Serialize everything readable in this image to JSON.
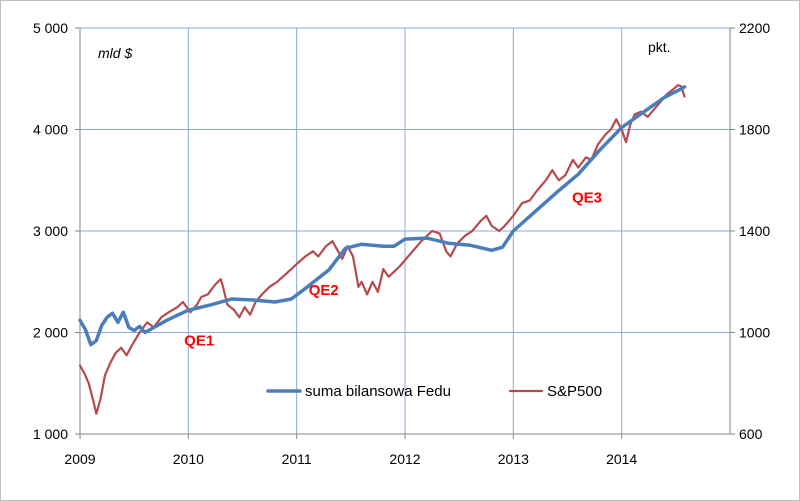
{
  "chart_data": {
    "type": "line",
    "title": "",
    "left_unit_label": "mld $",
    "right_unit_label": "pkt.",
    "x_ticks": [
      "2009",
      "2010",
      "2011",
      "2012",
      "2013",
      "2014"
    ],
    "xlim": [
      2009.0,
      2015.0
    ],
    "y_left": {
      "lim": [
        1000,
        5000
      ],
      "ticks": [
        "1 000",
        "2 000",
        "3 000",
        "4 000",
        "5 000"
      ],
      "tick_values": [
        1000,
        2000,
        3000,
        4000,
        5000
      ]
    },
    "y_right": {
      "lim": [
        600,
        2200
      ],
      "ticks": [
        "600",
        "1000",
        "1400",
        "1800",
        "2200"
      ],
      "tick_values": [
        600,
        1000,
        1400,
        1800,
        2200
      ]
    },
    "grid": true,
    "legend_position": "bottom-center",
    "series": [
      {
        "name": "suma bilansowa Fedu",
        "axis": "left",
        "color": "#4a7ebb",
        "points": [
          [
            2009.0,
            2120
          ],
          [
            2009.05,
            2030
          ],
          [
            2009.1,
            1880
          ],
          [
            2009.15,
            1920
          ],
          [
            2009.2,
            2070
          ],
          [
            2009.25,
            2150
          ],
          [
            2009.3,
            2190
          ],
          [
            2009.35,
            2100
          ],
          [
            2009.4,
            2200
          ],
          [
            2009.45,
            2050
          ],
          [
            2009.5,
            2020
          ],
          [
            2009.55,
            2060
          ],
          [
            2009.6,
            2000
          ],
          [
            2009.7,
            2060
          ],
          [
            2009.8,
            2120
          ],
          [
            2009.9,
            2170
          ],
          [
            2010.0,
            2220
          ],
          [
            2010.2,
            2270
          ],
          [
            2010.4,
            2330
          ],
          [
            2010.6,
            2320
          ],
          [
            2010.8,
            2300
          ],
          [
            2010.95,
            2330
          ],
          [
            2011.1,
            2450
          ],
          [
            2011.3,
            2620
          ],
          [
            2011.45,
            2830
          ],
          [
            2011.6,
            2870
          ],
          [
            2011.8,
            2850
          ],
          [
            2011.9,
            2850
          ],
          [
            2012.0,
            2920
          ],
          [
            2012.2,
            2930
          ],
          [
            2012.4,
            2880
          ],
          [
            2012.6,
            2860
          ],
          [
            2012.8,
            2810
          ],
          [
            2012.9,
            2840
          ],
          [
            2013.0,
            3000
          ],
          [
            2013.2,
            3190
          ],
          [
            2013.4,
            3380
          ],
          [
            2013.6,
            3560
          ],
          [
            2013.8,
            3800
          ],
          [
            2014.0,
            4020
          ],
          [
            2014.2,
            4170
          ],
          [
            2014.4,
            4320
          ],
          [
            2014.55,
            4400
          ],
          [
            2014.58,
            4420
          ]
        ]
      },
      {
        "name": "S&P500",
        "axis": "right",
        "color": "#b64b4e",
        "points": [
          [
            2009.0,
            870
          ],
          [
            2009.04,
            840
          ],
          [
            2009.08,
            800
          ],
          [
            2009.12,
            735
          ],
          [
            2009.15,
            680
          ],
          [
            2009.19,
            740
          ],
          [
            2009.23,
            830
          ],
          [
            2009.28,
            880
          ],
          [
            2009.33,
            920
          ],
          [
            2009.38,
            940
          ],
          [
            2009.43,
            910
          ],
          [
            2009.48,
            950
          ],
          [
            2009.55,
            1000
          ],
          [
            2009.62,
            1040
          ],
          [
            2009.68,
            1020
          ],
          [
            2009.75,
            1060
          ],
          [
            2009.82,
            1080
          ],
          [
            2009.9,
            1100
          ],
          [
            2009.95,
            1120
          ],
          [
            2010.02,
            1080
          ],
          [
            2010.08,
            1110
          ],
          [
            2010.12,
            1140
          ],
          [
            2010.18,
            1150
          ],
          [
            2010.25,
            1190
          ],
          [
            2010.3,
            1210
          ],
          [
            2010.32,
            1180
          ],
          [
            2010.36,
            1110
          ],
          [
            2010.42,
            1090
          ],
          [
            2010.47,
            1060
          ],
          [
            2010.52,
            1100
          ],
          [
            2010.57,
            1070
          ],
          [
            2010.62,
            1120
          ],
          [
            2010.68,
            1150
          ],
          [
            2010.75,
            1180
          ],
          [
            2010.82,
            1200
          ],
          [
            2010.9,
            1230
          ],
          [
            2010.95,
            1250
          ],
          [
            2011.0,
            1270
          ],
          [
            2011.08,
            1300
          ],
          [
            2011.15,
            1320
          ],
          [
            2011.2,
            1300
          ],
          [
            2011.27,
            1340
          ],
          [
            2011.33,
            1360
          ],
          [
            2011.37,
            1330
          ],
          [
            2011.42,
            1290
          ],
          [
            2011.47,
            1340
          ],
          [
            2011.52,
            1300
          ],
          [
            2011.57,
            1180
          ],
          [
            2011.6,
            1200
          ],
          [
            2011.65,
            1150
          ],
          [
            2011.7,
            1200
          ],
          [
            2011.75,
            1160
          ],
          [
            2011.8,
            1250
          ],
          [
            2011.85,
            1220
          ],
          [
            2011.9,
            1240
          ],
          [
            2011.95,
            1260
          ],
          [
            2012.05,
            1310
          ],
          [
            2012.15,
            1360
          ],
          [
            2012.25,
            1400
          ],
          [
            2012.32,
            1390
          ],
          [
            2012.38,
            1320
          ],
          [
            2012.42,
            1300
          ],
          [
            2012.48,
            1350
          ],
          [
            2012.55,
            1380
          ],
          [
            2012.62,
            1400
          ],
          [
            2012.7,
            1440
          ],
          [
            2012.75,
            1460
          ],
          [
            2012.8,
            1420
          ],
          [
            2012.87,
            1400
          ],
          [
            2012.92,
            1420
          ],
          [
            2013.0,
            1460
          ],
          [
            2013.08,
            1510
          ],
          [
            2013.15,
            1520
          ],
          [
            2013.22,
            1560
          ],
          [
            2013.3,
            1600
          ],
          [
            2013.36,
            1640
          ],
          [
            2013.42,
            1600
          ],
          [
            2013.48,
            1620
          ],
          [
            2013.55,
            1680
          ],
          [
            2013.6,
            1650
          ],
          [
            2013.67,
            1690
          ],
          [
            2013.72,
            1680
          ],
          [
            2013.78,
            1740
          ],
          [
            2013.85,
            1780
          ],
          [
            2013.9,
            1800
          ],
          [
            2013.95,
            1840
          ],
          [
            2014.0,
            1800
          ],
          [
            2014.04,
            1750
          ],
          [
            2014.08,
            1820
          ],
          [
            2014.12,
            1860
          ],
          [
            2014.18,
            1870
          ],
          [
            2014.24,
            1850
          ],
          [
            2014.3,
            1880
          ],
          [
            2014.36,
            1910
          ],
          [
            2014.42,
            1940
          ],
          [
            2014.48,
            1960
          ],
          [
            2014.52,
            1975
          ],
          [
            2014.55,
            1970
          ],
          [
            2014.58,
            1930
          ]
        ]
      }
    ],
    "annotations": [
      {
        "text": "QE1",
        "x": 2010.1,
        "y_left": 1870,
        "color": "#ff0000"
      },
      {
        "text": "QE2",
        "x": 2011.25,
        "y_left": 2370,
        "color": "#ff0000"
      },
      {
        "text": "QE3",
        "x": 2013.68,
        "y_left": 3280,
        "color": "#ff0000"
      }
    ]
  }
}
